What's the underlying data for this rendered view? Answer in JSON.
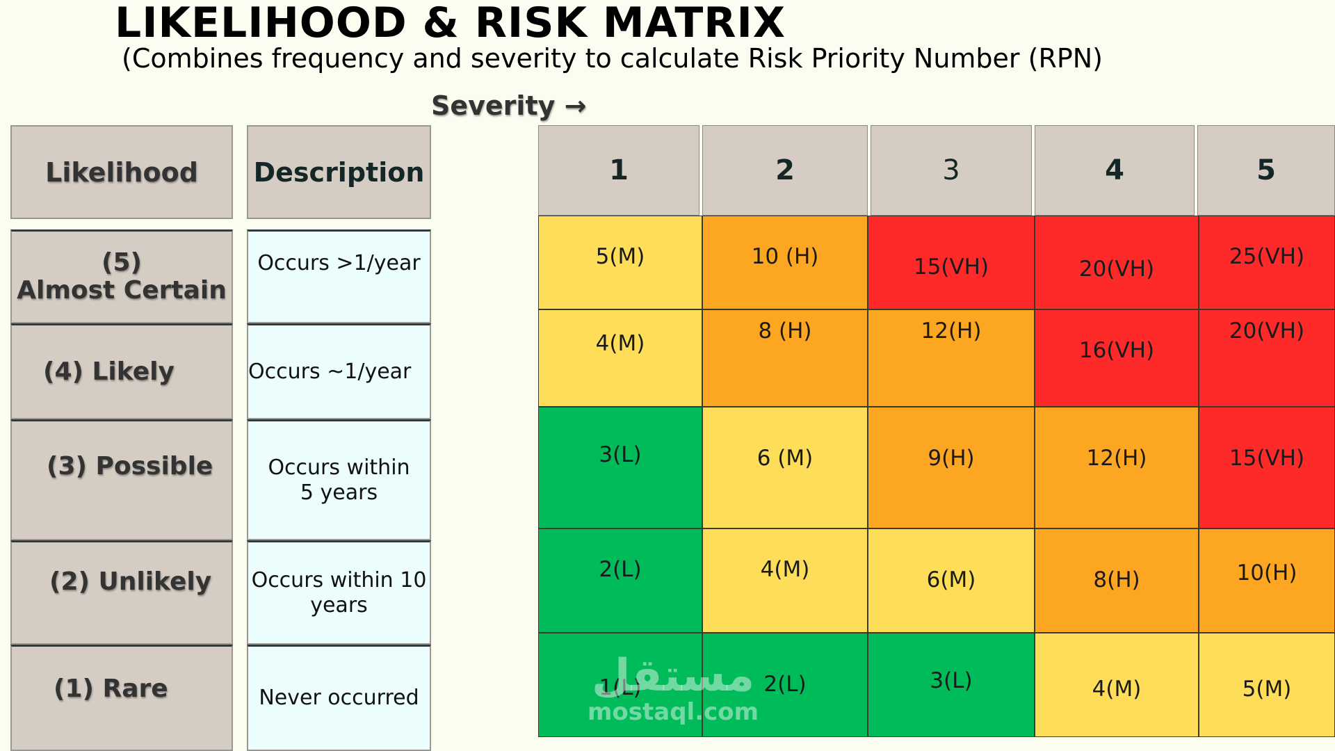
{
  "title": "LIKELIHOOD & RISK MATRIX",
  "subtitle": "(Combines frequency and severity to calculate Risk Priority Number (RPN)",
  "severity_label": "Severity →",
  "headers": {
    "likelihood": "Likelihood",
    "description": "Description"
  },
  "severity_levels": [
    "1",
    "2",
    "3",
    "4",
    "5"
  ],
  "likelihood_rows": [
    {
      "label_num": "(5)",
      "label_text": "Almost Certain",
      "description": "Occurs >1/year"
    },
    {
      "label": "(4) Likely",
      "description": "Occurs ~1/year"
    },
    {
      "label": "(3) Possible",
      "description_line1": "Occurs within",
      "description_line2": "5 years"
    },
    {
      "label": "(2) Unlikely",
      "description_line1": "Occurs within 10",
      "description_line2": "years"
    },
    {
      "label": "(1) Rare",
      "description": "Never occurred"
    }
  ],
  "matrix": [
    [
      "5(M)",
      "10 (H)",
      "15(VH)",
      "20(VH)",
      "25(VH)"
    ],
    [
      "4(M)",
      "8 (H)",
      "12(H)",
      "16(VH)",
      "20(VH)"
    ],
    [
      "3(L)",
      "6 (M)",
      "9(H)",
      "12(H)",
      "15(VH)"
    ],
    [
      "2(L)",
      "4(M)",
      "6(M)",
      "8(H)",
      "10(H)"
    ],
    [
      "1(L)",
      "2(L)",
      "3(L)",
      "4(M)",
      "5(M)"
    ]
  ],
  "colors": {
    "L": "#00bb5a",
    "M": "#fedd58",
    "H": "#fda621",
    "VH": "#fe2a2a"
  },
  "watermark": {
    "arabic": "مستقل",
    "latin": "mostaql.com"
  }
}
